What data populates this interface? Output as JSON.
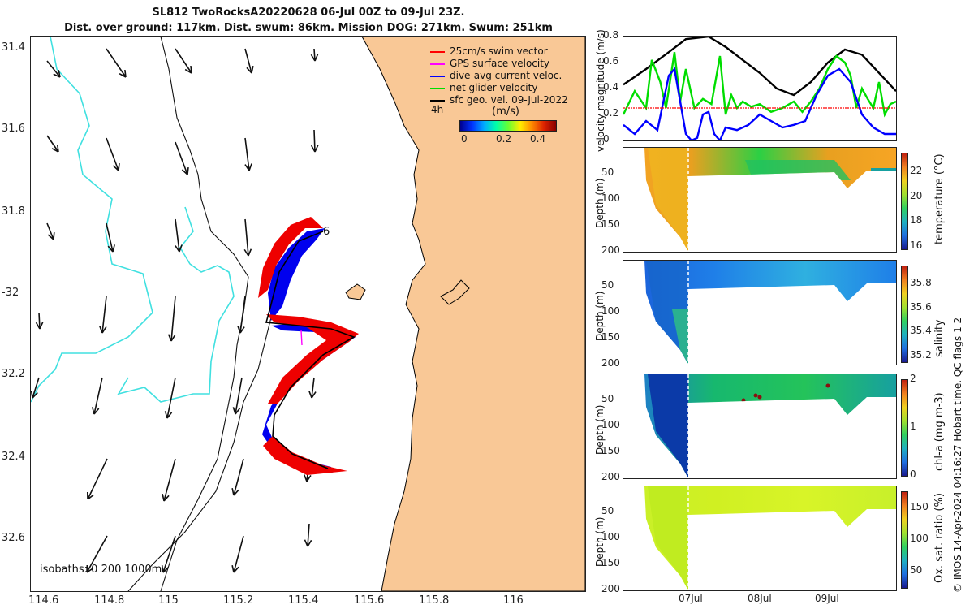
{
  "header": {
    "line1": "SL812 TwoRocksA20220628 06-Jul 00Z to 09-Jul 23Z.",
    "line2": "Dist. over ground: 117km. Dist. swum: 86km. Mission DOG: 271km. Swum: 251km"
  },
  "map": {
    "lat_ticks": [
      "31.4",
      "31.6",
      "31.8",
      "-32",
      "32.2",
      "32.4",
      "32.6"
    ],
    "lon_ticks": [
      "114.6",
      "114.8",
      "115",
      "115.2",
      "115.4",
      "115.6",
      "115.8",
      "116"
    ],
    "isobaths_label": "isobaths: 0   200  1000m",
    "end_label": "6",
    "scale_label": "4h",
    "colors": {
      "land": "#f9c896",
      "isobath_200": "#40e0e0",
      "coast": "#000000"
    }
  },
  "legend": {
    "items": [
      {
        "label": "25cm/s swim vector",
        "color": "#ff0000"
      },
      {
        "label": "GPS surface velocity",
        "color": "#ff00ff"
      },
      {
        "label": "dive-avg current veloc.",
        "color": "#0000ff"
      },
      {
        "label": "net glider velocity",
        "color": "#00dd00"
      },
      {
        "label": "sfc geo. vel. 09-Jul-2022",
        "color": "#000000"
      }
    ],
    "colorbar_label": "(m/s)",
    "colorbar_ticks": [
      "0",
      "0.2",
      "0.4"
    ]
  },
  "chart_data": [
    {
      "type": "line",
      "ylabel": "velocity magnitude (m/s)",
      "ylim": [
        0,
        0.8
      ],
      "yticks": [
        "0",
        "0.2",
        "0.4",
        "0.6",
        "0.8"
      ],
      "x_range_hours": [
        0,
        96
      ],
      "series": [
        {
          "color": "#000000",
          "x": [
            0,
            8,
            16,
            22,
            30,
            36,
            42,
            48,
            54,
            60,
            66,
            72,
            78,
            84,
            90,
            96
          ],
          "values": [
            0.43,
            0.55,
            0.68,
            0.78,
            0.8,
            0.72,
            0.62,
            0.52,
            0.4,
            0.35,
            0.45,
            0.6,
            0.7,
            0.66,
            0.52,
            0.38
          ]
        },
        {
          "color": "#00dd00",
          "x": [
            0,
            4,
            8,
            10,
            13,
            15,
            18,
            20,
            22,
            25,
            28,
            31,
            34,
            36,
            38,
            40,
            42,
            45,
            48,
            52,
            56,
            60,
            63,
            66,
            69,
            72,
            75,
            78,
            80,
            82,
            84,
            86,
            88,
            90,
            92,
            94,
            96
          ],
          "values": [
            0.2,
            0.38,
            0.25,
            0.62,
            0.45,
            0.25,
            0.68,
            0.3,
            0.55,
            0.25,
            0.32,
            0.28,
            0.65,
            0.2,
            0.35,
            0.25,
            0.3,
            0.26,
            0.28,
            0.22,
            0.25,
            0.3,
            0.22,
            0.3,
            0.4,
            0.55,
            0.65,
            0.6,
            0.5,
            0.25,
            0.4,
            0.32,
            0.25,
            0.45,
            0.2,
            0.28,
            0.3
          ]
        },
        {
          "color": "#0000ff",
          "x": [
            0,
            4,
            8,
            12,
            16,
            18,
            20,
            22,
            24,
            26,
            28,
            30,
            32,
            34,
            36,
            40,
            44,
            48,
            52,
            56,
            60,
            64,
            68,
            72,
            76,
            80,
            84,
            88,
            92,
            96
          ],
          "values": [
            0.12,
            0.05,
            0.15,
            0.08,
            0.5,
            0.55,
            0.3,
            0.05,
            0.0,
            0.02,
            0.2,
            0.22,
            0.05,
            0.0,
            0.1,
            0.08,
            0.12,
            0.2,
            0.15,
            0.1,
            0.12,
            0.15,
            0.35,
            0.5,
            0.55,
            0.45,
            0.2,
            0.1,
            0.05,
            0.05
          ]
        },
        {
          "color": "#ff0000",
          "x": [
            0,
            96
          ],
          "values": [
            0.25,
            0.25
          ]
        }
      ]
    },
    {
      "type": "heatmap",
      "ylabel": "Depth (m)",
      "colorbar_label": "temperature (°C)",
      "colorbar_ticks": [
        "16",
        "18",
        "20",
        "22"
      ],
      "clim": [
        15.8,
        23.5
      ]
    },
    {
      "type": "heatmap",
      "ylabel": "Depth (m)",
      "colorbar_label": "salinity",
      "colorbar_ticks": [
        "35.2",
        "35.4",
        "35.6",
        "35.8"
      ],
      "clim": [
        35.15,
        35.95
      ]
    },
    {
      "type": "heatmap",
      "ylabel": "Depth (m)",
      "colorbar_label": "chl-a (mg m-3)",
      "colorbar_ticks": [
        "0",
        "1",
        "2"
      ],
      "clim": [
        0,
        2
      ]
    },
    {
      "type": "heatmap",
      "ylabel": "Depth (m)",
      "colorbar_label": "Ox. sat. ratio (%)",
      "colorbar_ticks": [
        "50",
        "100",
        "150"
      ],
      "clim": [
        25,
        175
      ]
    }
  ],
  "profiles": {
    "depth_ticks": [
      "50",
      "100",
      "150",
      "200"
    ],
    "time_ticks": [
      "07Jul",
      "08Jul",
      "09Jul"
    ]
  },
  "footer": {
    "qc_label": "Hobart time. QC flags 1  2",
    "credit": "© IMOS 14-Apr-2024 04:16:27"
  }
}
